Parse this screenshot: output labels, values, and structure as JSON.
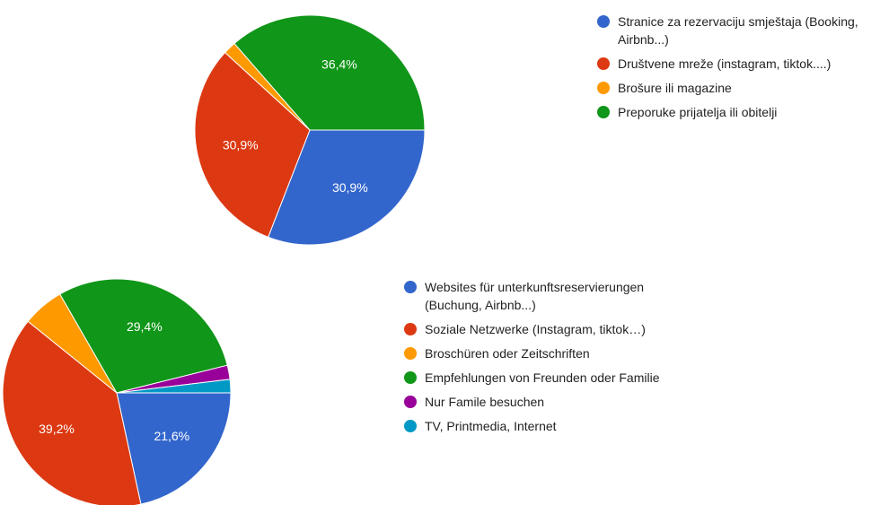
{
  "chart_data": [
    {
      "type": "pie",
      "categories": [
        "Stranice za rezervaciju smještaja (Booking, Airbnb...)",
        "Društvene mreže (instagram, tiktok....)",
        "Brošure ili magazine",
        "Preporuke prijatelja ili obitelji"
      ],
      "values": [
        30.9,
        30.9,
        1.8,
        36.4
      ],
      "value_labels": [
        "30,9%",
        "30,9%",
        null,
        "36,4%"
      ],
      "colors": [
        "#3366cc",
        "#dc3912",
        "#ff9900",
        "#109618"
      ]
    },
    {
      "type": "pie",
      "categories": [
        "Websites für unterkunftsreservierungen (Buchung, Airbnb...)",
        "Soziale Netzwerke (Instagram, tiktok…)",
        "Broschüren oder Zeitschriften",
        "Empfehlungen von Freunden oder Familie",
        "Nur Famile besuchen",
        "TV, Printmedia, Internet"
      ],
      "values": [
        21.6,
        39.2,
        5.9,
        29.4,
        2.0,
        1.9
      ],
      "value_labels": [
        "21,6%",
        "39,2%",
        null,
        "29,4%",
        null,
        null
      ],
      "colors": [
        "#3366cc",
        "#dc3912",
        "#ff9900",
        "#109618",
        "#990099",
        "#0099c6"
      ]
    }
  ]
}
